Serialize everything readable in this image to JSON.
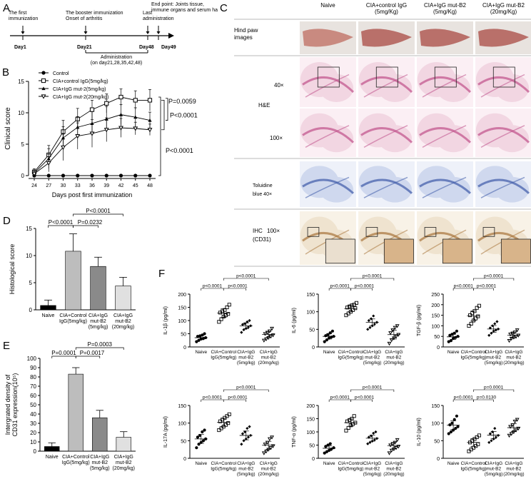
{
  "panel_letters": {
    "a": "A",
    "b": "B",
    "c": "C",
    "d": "D",
    "e": "E",
    "f": "F"
  },
  "timeline": {
    "events": [
      {
        "day": "Day1",
        "label": [
          "The first",
          "immunization"
        ]
      },
      {
        "day": "Day21",
        "label": [
          "The booster immunization",
          "Onset of arthritis"
        ]
      },
      {
        "day": "Day48",
        "label": [
          "Last",
          "administration"
        ]
      },
      {
        "day": "Day49",
        "label": [
          "End point: Joints tissue,",
          "immune organs and serum harvest"
        ]
      }
    ],
    "administration": [
      "Administration",
      "(on day21,28,35,42,48)"
    ]
  },
  "panel_c": {
    "columns": [
      "Naive",
      "CIA+control IgG\n(5mg/Kg)",
      "CIA+IgG mut-B2\n(5mg/Kg)",
      "CIA+IgG mut-B2\n(20mg/Kg)"
    ],
    "rows": [
      {
        "label": "Hind paw\nimages"
      },
      {
        "label": "40×"
      },
      {
        "label": "H&E"
      },
      {
        "label": "100×"
      },
      {
        "label": "Toluidine\nblue  40×"
      },
      {
        "label": "IHC\n(CD31)",
        "mag": "100×"
      }
    ],
    "colors": {
      "paw": "#b9706a",
      "he_bg": "#f2d6e2",
      "he_tissue": "#c0508a",
      "tb_bg": "#cfd8ee",
      "tb_tissue": "#3d5aa8",
      "ihc_bg": "#efe3cf",
      "ihc_tissue": "#a8743a"
    }
  },
  "chart_data": [
    {
      "id": "B",
      "type": "line",
      "ylabel": "Clinical score",
      "xlabel": "Days post first immunization",
      "x": [
        24,
        27,
        30,
        33,
        36,
        39,
        42,
        45,
        48
      ],
      "ylim": [
        0,
        15
      ],
      "yticks": [
        0,
        5,
        10,
        15
      ],
      "series": [
        {
          "name": "Control",
          "marker": "circle-filled",
          "values": [
            0,
            0,
            0,
            0,
            0,
            0,
            0,
            0,
            0
          ],
          "err": [
            0,
            0,
            0,
            0,
            0,
            0,
            0,
            0,
            0
          ]
        },
        {
          "name": "CIA+control IgG(5mg/kg)",
          "marker": "square-open",
          "values": [
            0.6,
            3.3,
            7.0,
            9.0,
            10.5,
            11.5,
            12.5,
            12.0,
            12.0
          ],
          "err": [
            0.5,
            1.5,
            1.8,
            1.7,
            1.5,
            1.5,
            1.3,
            1.5,
            1.7
          ]
        },
        {
          "name": "CIA+IgG mut-2(5mg/kg)",
          "marker": "triangle-filled",
          "values": [
            0.4,
            2.7,
            6.0,
            7.7,
            8.3,
            9.0,
            9.7,
            9.3,
            8.8
          ],
          "err": [
            0.4,
            1.6,
            1.8,
            1.7,
            1.9,
            2.0,
            1.6,
            1.5,
            1.3
          ]
        },
        {
          "name": "CIA+IgG mut-2(20mg/kg)",
          "marker": "triangle-down-open",
          "values": [
            0.3,
            2.0,
            4.5,
            6.3,
            6.7,
            7.3,
            7.6,
            7.5,
            7.3
          ],
          "err": [
            0.3,
            1.4,
            2.1,
            2.1,
            2.2,
            1.9,
            1.5,
            1.0,
            0.9
          ]
        }
      ],
      "annotations": [
        "P=0.0059",
        "P<0.0001",
        "P<0.0001"
      ]
    },
    {
      "id": "D",
      "type": "bar",
      "ylabel": "Histological score",
      "categories": [
        "Naive",
        "CIA+Control\nIgG(5mg/kg)",
        "CIA+IgG\nmut-B2\n(5mg/kg)",
        "CIA+IgG\nmut-B2\n(20mg/kg)"
      ],
      "values": [
        0.8,
        10.8,
        8.0,
        4.4
      ],
      "err": [
        1.0,
        3.2,
        1.7,
        1.6
      ],
      "ylim": [
        0,
        15
      ],
      "yticks": [
        0,
        5,
        10,
        15
      ],
      "colors": [
        "#000000",
        "#bdbdbd",
        "#8a8a8a",
        "#e0e0e0"
      ],
      "annotations": [
        "P<0.0001",
        "P=0.0232",
        "P<0.0001"
      ]
    },
    {
      "id": "E",
      "type": "bar",
      "ylabel": "Intergrated density of\nCD31 expression(10⁵)",
      "categories": [
        "Naive",
        "CIA+Control\nIgG(5mg/kg)",
        "CIA+IgG\nmut-B2\n(5mg/kg)",
        "CIA+IgG\nmut-B2\n(20mg/kg)"
      ],
      "values": [
        5,
        83,
        36,
        15
      ],
      "err": [
        4,
        7,
        8,
        6
      ],
      "ylim": [
        0,
        100
      ],
      "yticks": [
        0,
        10,
        20,
        30,
        40,
        50,
        60,
        70,
        80,
        90,
        100
      ],
      "colors": [
        "#000000",
        "#bdbdbd",
        "#8a8a8a",
        "#e0e0e0"
      ],
      "annotations": [
        "P=0.0001",
        "P=0.0017",
        "P=0.0003"
      ]
    },
    {
      "id": "F1",
      "type": "scatter",
      "ylabel": "IL-1β  (pg/ml)",
      "ylim": [
        0,
        200
      ],
      "yticks": [
        0,
        50,
        100,
        150,
        200
      ],
      "categories": [
        "Naive",
        "CIA+Control\nIgG(5mg/kg)",
        "CIA+IgG\nmut-B2\n(5mg/kg)",
        "CIA+IgG\nmut-B2\n(20mg/kg)"
      ],
      "groups": [
        [
          20,
          25,
          30,
          32,
          35,
          40,
          42,
          45,
          50
        ],
        [
          95,
          105,
          115,
          120,
          125,
          130,
          135,
          140,
          150,
          160
        ],
        [
          55,
          65,
          70,
          75,
          80,
          85,
          88,
          95,
          100
        ],
        [
          25,
          30,
          35,
          40,
          45,
          50,
          55,
          60,
          70
        ]
      ],
      "means": [
        35,
        128,
        80,
        47
      ],
      "annotations": [
        "p<0.0001",
        "p<0.0001",
        "p<0.0001"
      ]
    },
    {
      "id": "F2",
      "type": "scatter",
      "ylabel": "IL-6  (pg/ml)",
      "ylim": [
        0,
        150
      ],
      "yticks": [
        0,
        50,
        100,
        150
      ],
      "categories": [
        "Naive",
        "CIA+Control\nIgG(5mg/kg)",
        "CIA+IgG\nmut-B2\n(5mg/kg)",
        "CIA+IgG\nmut-B2\n(20mg/kg)"
      ],
      "groups": [
        [
          15,
          20,
          25,
          28,
          30,
          32,
          35,
          40,
          45
        ],
        [
          90,
          95,
          100,
          105,
          110,
          112,
          115,
          118,
          120,
          125
        ],
        [
          50,
          55,
          60,
          65,
          70,
          75,
          80,
          88
        ],
        [
          10,
          20,
          25,
          30,
          35,
          40,
          48,
          55,
          60
        ]
      ],
      "means": [
        30,
        109,
        70,
        35
      ],
      "annotations": [
        "p<0.0001",
        "p<0.0001",
        "p<0.0001"
      ]
    },
    {
      "id": "F3",
      "type": "scatter",
      "ylabel": "TGF-β  (pg/ml)",
      "ylim": [
        0,
        250
      ],
      "yticks": [
        0,
        50,
        100,
        150,
        200,
        250
      ],
      "categories": [
        "Naive",
        "CIA+Control\nIgG(5mg/kg)",
        "CIA+IgG\nmut-B2\n(5mg/kg)",
        "CIA+IgG\nmut-B2\n(20mg/kg)"
      ],
      "groups": [
        [
          25,
          30,
          40,
          45,
          50,
          55,
          60,
          65,
          75
        ],
        [
          100,
          110,
          125,
          135,
          145,
          150,
          160,
          170,
          185,
          195
        ],
        [
          55,
          65,
          75,
          80,
          85,
          90,
          100,
          110,
          120
        ],
        [
          30,
          40,
          45,
          50,
          55,
          60,
          65,
          70,
          80
        ]
      ],
      "means": [
        48,
        147,
        85,
        55
      ],
      "annotations": [
        "p<0.0001",
        "p<0.0001",
        "p<0.0001"
      ]
    },
    {
      "id": "F4",
      "type": "scatter",
      "ylabel": "IL-17A  (pg/ml)",
      "ylim": [
        0,
        150
      ],
      "yticks": [
        0,
        50,
        100,
        150
      ],
      "categories": [
        "Naive",
        "CIA+Control\nIgG(5mg/kg)",
        "CIA+IgG\nmut-B2\n(5mg/kg)",
        "CIA+IgG\nmut-B2\n(20mg/kg)"
      ],
      "groups": [
        [
          30,
          40,
          45,
          50,
          55,
          60,
          65,
          75,
          80
        ],
        [
          80,
          85,
          90,
          95,
          100,
          105,
          110,
          115,
          120,
          125
        ],
        [
          40,
          50,
          55,
          60,
          65,
          70,
          75,
          85,
          90
        ],
        [
          15,
          20,
          25,
          30,
          35,
          40,
          45,
          55,
          60
        ]
      ],
      "means": [
        55,
        102,
        65,
        37
      ],
      "annotations": [
        "p<0.0001",
        "p<0.0001",
        "p<0.0001"
      ]
    },
    {
      "id": "F5",
      "type": "scatter",
      "ylabel": "TNF-α  (pg/ml)",
      "ylim": [
        0,
        200
      ],
      "yticks": [
        0,
        50,
        100,
        150,
        200
      ],
      "categories": [
        "Naive",
        "CIA+Control\nIgG(5mg/kg)",
        "CIA+IgG\nmut-B2\n(5mg/kg)",
        "CIA+IgG\nmut-B2\n(20mg/kg)"
      ],
      "groups": [
        [
          20,
          25,
          30,
          35,
          40,
          45,
          50,
          55
        ],
        [
          105,
          115,
          125,
          130,
          135,
          140,
          145,
          150,
          160
        ],
        [
          55,
          60,
          65,
          70,
          75,
          80,
          85,
          95,
          100
        ],
        [
          20,
          30,
          35,
          40,
          45,
          50,
          55,
          60,
          70
        ]
      ],
      "means": [
        38,
        135,
        76,
        48
      ],
      "annotations": [
        "p<0.0001",
        "p<0.0001",
        "p<0.0001"
      ]
    },
    {
      "id": "F6",
      "type": "scatter",
      "ylabel": "IL-10  (pg/ml)",
      "ylim": [
        0,
        150
      ],
      "yticks": [
        0,
        50,
        100,
        150
      ],
      "categories": [
        "Naive",
        "CIA+Control\nIgG(5mg/kg)",
        "CIA+IgG\nmut-B2\n(5mg/kg)",
        "CIA+IgG\nmut-B2\n(20mg/kg)"
      ],
      "groups": [
        [
          70,
          75,
          80,
          85,
          90,
          95,
          100,
          110,
          120
        ],
        [
          20,
          25,
          30,
          35,
          40,
          45,
          50,
          55,
          60,
          65
        ],
        [
          45,
          50,
          55,
          60,
          65,
          70,
          75,
          85
        ],
        [
          65,
          70,
          75,
          80,
          85,
          90,
          95,
          105,
          110
        ]
      ],
      "means": [
        94,
        45,
        66,
        87
      ],
      "annotations": [
        "p<0.0001",
        "p=0.0130",
        "p=0.0001"
      ]
    }
  ]
}
